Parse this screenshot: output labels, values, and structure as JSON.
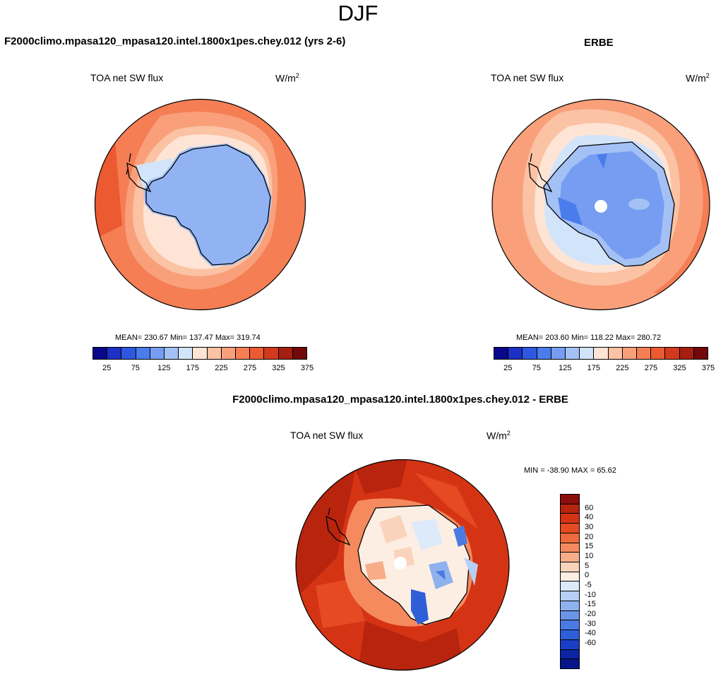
{
  "season": "DJF",
  "panels": {
    "model": {
      "case_title": "F2000climo.mpasa120_mpasa120.intel.1800x1pes.chey.012 (yrs 2-6)",
      "variable": "TOA net SW flux",
      "units": "W/m",
      "units_sup": "2",
      "stats": "MEAN= 230.67  Min= 137.47  Max= 319.74"
    },
    "obs": {
      "case_title": "ERBE",
      "variable": "TOA net SW flux",
      "units": "W/m",
      "units_sup": "2",
      "stats": "MEAN= 203.60  Min= 118.22  Max= 280.72"
    },
    "diff": {
      "case_title": "F2000climo.mpasa120_mpasa120.intel.1800x1pes.chey.012 - ERBE",
      "variable": "TOA net SW flux",
      "units": "W/m",
      "units_sup": "2",
      "stats": "MIN = -38.90 MAX =  65.62"
    }
  },
  "colorbar_main": {
    "colors": [
      "#08088a",
      "#1c30c4",
      "#2f57df",
      "#4a7deb",
      "#769df2",
      "#a4c1f6",
      "#d2e4fa",
      "#fde4d5",
      "#fbc2a4",
      "#f9a07b",
      "#f57e54",
      "#ec5a32",
      "#d2391d",
      "#a51e0f",
      "#73080a"
    ],
    "tick_labels": [
      "25",
      "75",
      "125",
      "175",
      "225",
      "275",
      "325",
      "375"
    ]
  },
  "colorbar_diff": {
    "colors": [
      "#8a0e0c",
      "#b8240e",
      "#d53414",
      "#e54a22",
      "#ee6a3d",
      "#f48a5e",
      "#f7ad88",
      "#fad3bc",
      "#fdeee4",
      "#ddeaf9",
      "#b7cff4",
      "#8fb2ee",
      "#6a95e8",
      "#4a7be3",
      "#2f5fd8",
      "#1a3fc6",
      "#0c24a3",
      "#061688"
    ],
    "tick_labels": [
      "60",
      "40",
      "30",
      "20",
      "15",
      "10",
      "5",
      "0",
      "-5",
      "-10",
      "-15",
      "-20",
      "-30",
      "-40",
      "-60"
    ]
  }
}
